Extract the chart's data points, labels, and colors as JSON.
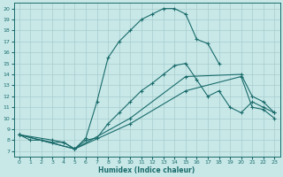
{
  "xlabel": "Humidex (Indice chaleur)",
  "bg_color": "#c8e8e8",
  "line_color": "#1a6b6b",
  "grid_color": "#a8cccc",
  "xlim": [
    -0.5,
    23.5
  ],
  "ylim": [
    6.5,
    20.5
  ],
  "xticks": [
    0,
    1,
    2,
    3,
    4,
    5,
    6,
    7,
    8,
    9,
    10,
    11,
    12,
    13,
    14,
    15,
    16,
    17,
    18,
    19,
    20,
    21,
    22,
    23
  ],
  "yticks": [
    7,
    8,
    9,
    10,
    11,
    12,
    13,
    14,
    15,
    16,
    17,
    18,
    19,
    20
  ],
  "curve1_x": [
    0,
    1,
    2,
    3,
    4,
    5,
    6,
    7,
    8,
    9,
    10,
    11,
    12,
    13,
    14,
    15,
    16,
    17,
    18
  ],
  "curve1_y": [
    8.5,
    8.0,
    8.0,
    7.8,
    7.8,
    7.2,
    8.2,
    11.5,
    15.5,
    17.0,
    18.0,
    19.0,
    19.5,
    20.0,
    20.0,
    19.5,
    17.2,
    16.8,
    15.0
  ],
  "curve2_x": [
    0,
    3,
    4,
    5,
    6,
    7,
    8,
    9,
    10,
    11,
    12,
    13,
    14,
    15,
    16,
    17,
    18,
    19,
    20,
    21,
    22,
    23
  ],
  "curve2_y": [
    8.5,
    8.0,
    7.8,
    7.2,
    8.0,
    8.2,
    9.5,
    10.5,
    11.5,
    12.5,
    13.2,
    14.0,
    14.8,
    15.0,
    13.5,
    12.0,
    12.5,
    11.0,
    10.5,
    11.5,
    11.0,
    10.5
  ],
  "curve3_x": [
    0,
    5,
    10,
    15,
    20,
    21,
    22,
    23
  ],
  "curve3_y": [
    8.5,
    7.2,
    10.0,
    13.8,
    14.0,
    12.0,
    11.5,
    10.5
  ],
  "curve4_x": [
    0,
    5,
    10,
    15,
    20,
    21,
    22,
    23
  ],
  "curve4_y": [
    8.5,
    7.2,
    9.5,
    12.5,
    13.8,
    11.0,
    10.8,
    10.0
  ]
}
